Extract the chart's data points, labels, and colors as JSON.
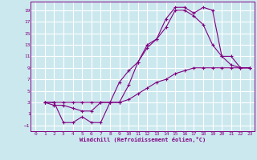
{
  "xlabel": "Windchill (Refroidissement éolien,°C)",
  "line_color": "#800080",
  "bg_color": "#cce8ef",
  "grid_color": "#ffffff",
  "xlim": [
    -0.5,
    23.5
  ],
  "ylim": [
    -2,
    20.5
  ],
  "xticks": [
    0,
    1,
    2,
    3,
    4,
    5,
    6,
    7,
    8,
    9,
    10,
    11,
    12,
    13,
    14,
    15,
    16,
    17,
    18,
    19,
    20,
    21,
    22,
    23
  ],
  "yticks": [
    -1,
    1,
    3,
    5,
    7,
    9,
    11,
    13,
    15,
    17,
    19
  ],
  "line1_x": [
    1,
    2,
    3,
    4,
    5,
    6,
    7,
    8,
    9,
    10,
    11,
    12,
    13,
    14,
    15,
    16,
    17,
    18,
    19,
    20,
    21,
    22,
    23
  ],
  "line1_y": [
    3,
    3,
    -0.5,
    -0.5,
    0.5,
    -0.5,
    -0.5,
    3,
    3,
    6,
    10,
    13,
    14,
    17.5,
    19.5,
    19.5,
    18.5,
    19.5,
    19,
    11,
    9.5,
    9,
    9
  ],
  "line2_x": [
    1,
    2,
    3,
    4,
    5,
    6,
    7,
    8,
    9,
    10,
    11,
    12,
    13,
    14,
    15,
    16,
    17,
    18,
    19,
    20,
    21,
    22,
    23
  ],
  "line2_y": [
    3,
    2.5,
    2.5,
    2,
    1.5,
    1.5,
    3,
    3,
    6.5,
    8.5,
    10,
    12.5,
    14,
    16,
    19,
    19,
    18,
    16.5,
    13,
    11,
    11,
    9,
    9
  ],
  "line3_x": [
    1,
    2,
    3,
    4,
    5,
    6,
    7,
    8,
    9,
    10,
    11,
    12,
    13,
    14,
    15,
    16,
    17,
    18,
    19,
    20,
    21,
    22,
    23
  ],
  "line3_y": [
    3,
    3,
    3,
    3,
    3,
    3,
    3,
    3,
    3,
    3.5,
    4.5,
    5.5,
    6.5,
    7,
    8,
    8.5,
    9,
    9,
    9,
    9,
    9,
    9,
    9
  ]
}
